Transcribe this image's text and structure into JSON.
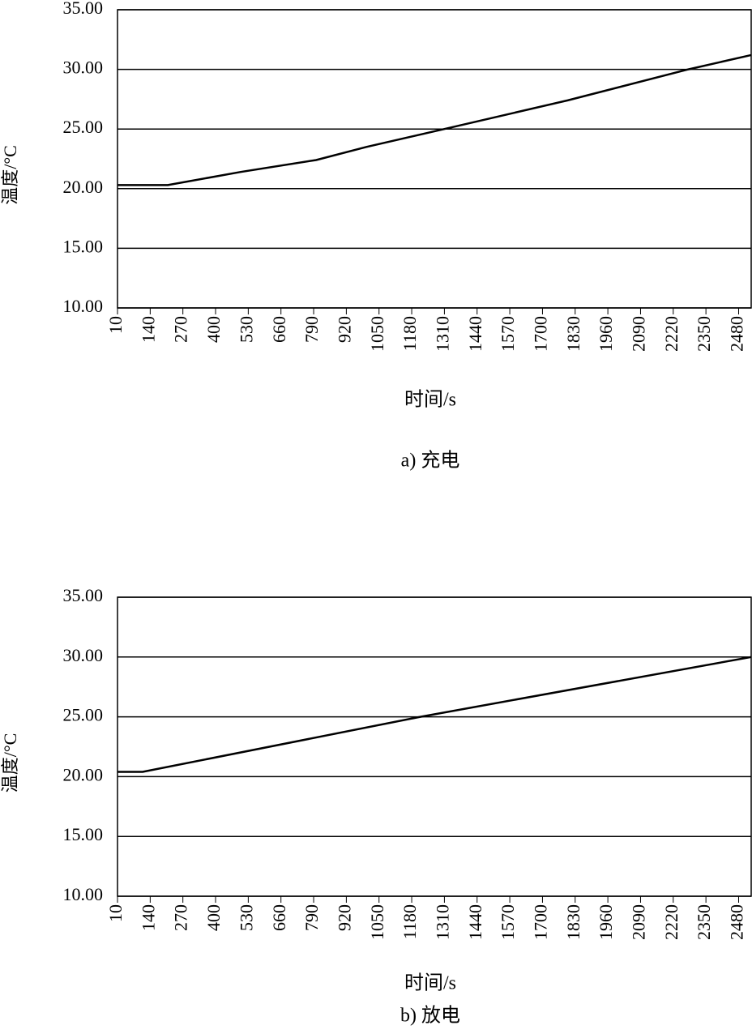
{
  "chart_data": [
    {
      "type": "line",
      "title": "a) 充电",
      "xlabel": "时间/s",
      "ylabel": "温度/°C",
      "x": [
        10,
        210,
        500,
        800,
        1000,
        1310,
        1800,
        2280,
        2530
      ],
      "values": [
        20.3,
        20.3,
        21.4,
        22.4,
        23.5,
        25.0,
        27.4,
        30.0,
        31.2
      ],
      "color": "#000000",
      "xlim": [
        10,
        2530
      ],
      "xticks": [
        10,
        140,
        270,
        400,
        530,
        660,
        790,
        920,
        1050,
        1180,
        1310,
        1440,
        1570,
        1700,
        1830,
        1960,
        2090,
        2220,
        2350,
        2480
      ],
      "ylim": [
        10,
        35
      ],
      "yticks": [
        {
          "value": 10,
          "label": "10.00"
        },
        {
          "value": 15,
          "label": "15.00"
        },
        {
          "value": 20,
          "label": "20.00"
        },
        {
          "value": 25,
          "label": "25.00"
        },
        {
          "value": 30,
          "label": "30.00"
        },
        {
          "value": 35,
          "label": "35.00"
        }
      ],
      "grid": true
    },
    {
      "type": "line",
      "title": "b) 放电",
      "xlabel": "时间/s",
      "ylabel": "温度/°C",
      "x": [
        10,
        110,
        1214,
        2530
      ],
      "values": [
        20.4,
        20.4,
        25.0,
        30.0
      ],
      "color": "#000000",
      "xlim": [
        10,
        2530
      ],
      "xticks": [
        10,
        140,
        270,
        400,
        530,
        660,
        790,
        920,
        1050,
        1180,
        1310,
        1440,
        1570,
        1700,
        1830,
        1960,
        2090,
        2220,
        2350,
        2480
      ],
      "ylim": [
        10,
        35
      ],
      "yticks": [
        {
          "value": 10,
          "label": "10.00"
        },
        {
          "value": 15,
          "label": "15.00"
        },
        {
          "value": 20,
          "label": "20.00"
        },
        {
          "value": 25,
          "label": "25.00"
        },
        {
          "value": 30,
          "label": "30.00"
        },
        {
          "value": 35,
          "label": "35.00"
        }
      ],
      "grid": true
    }
  ]
}
